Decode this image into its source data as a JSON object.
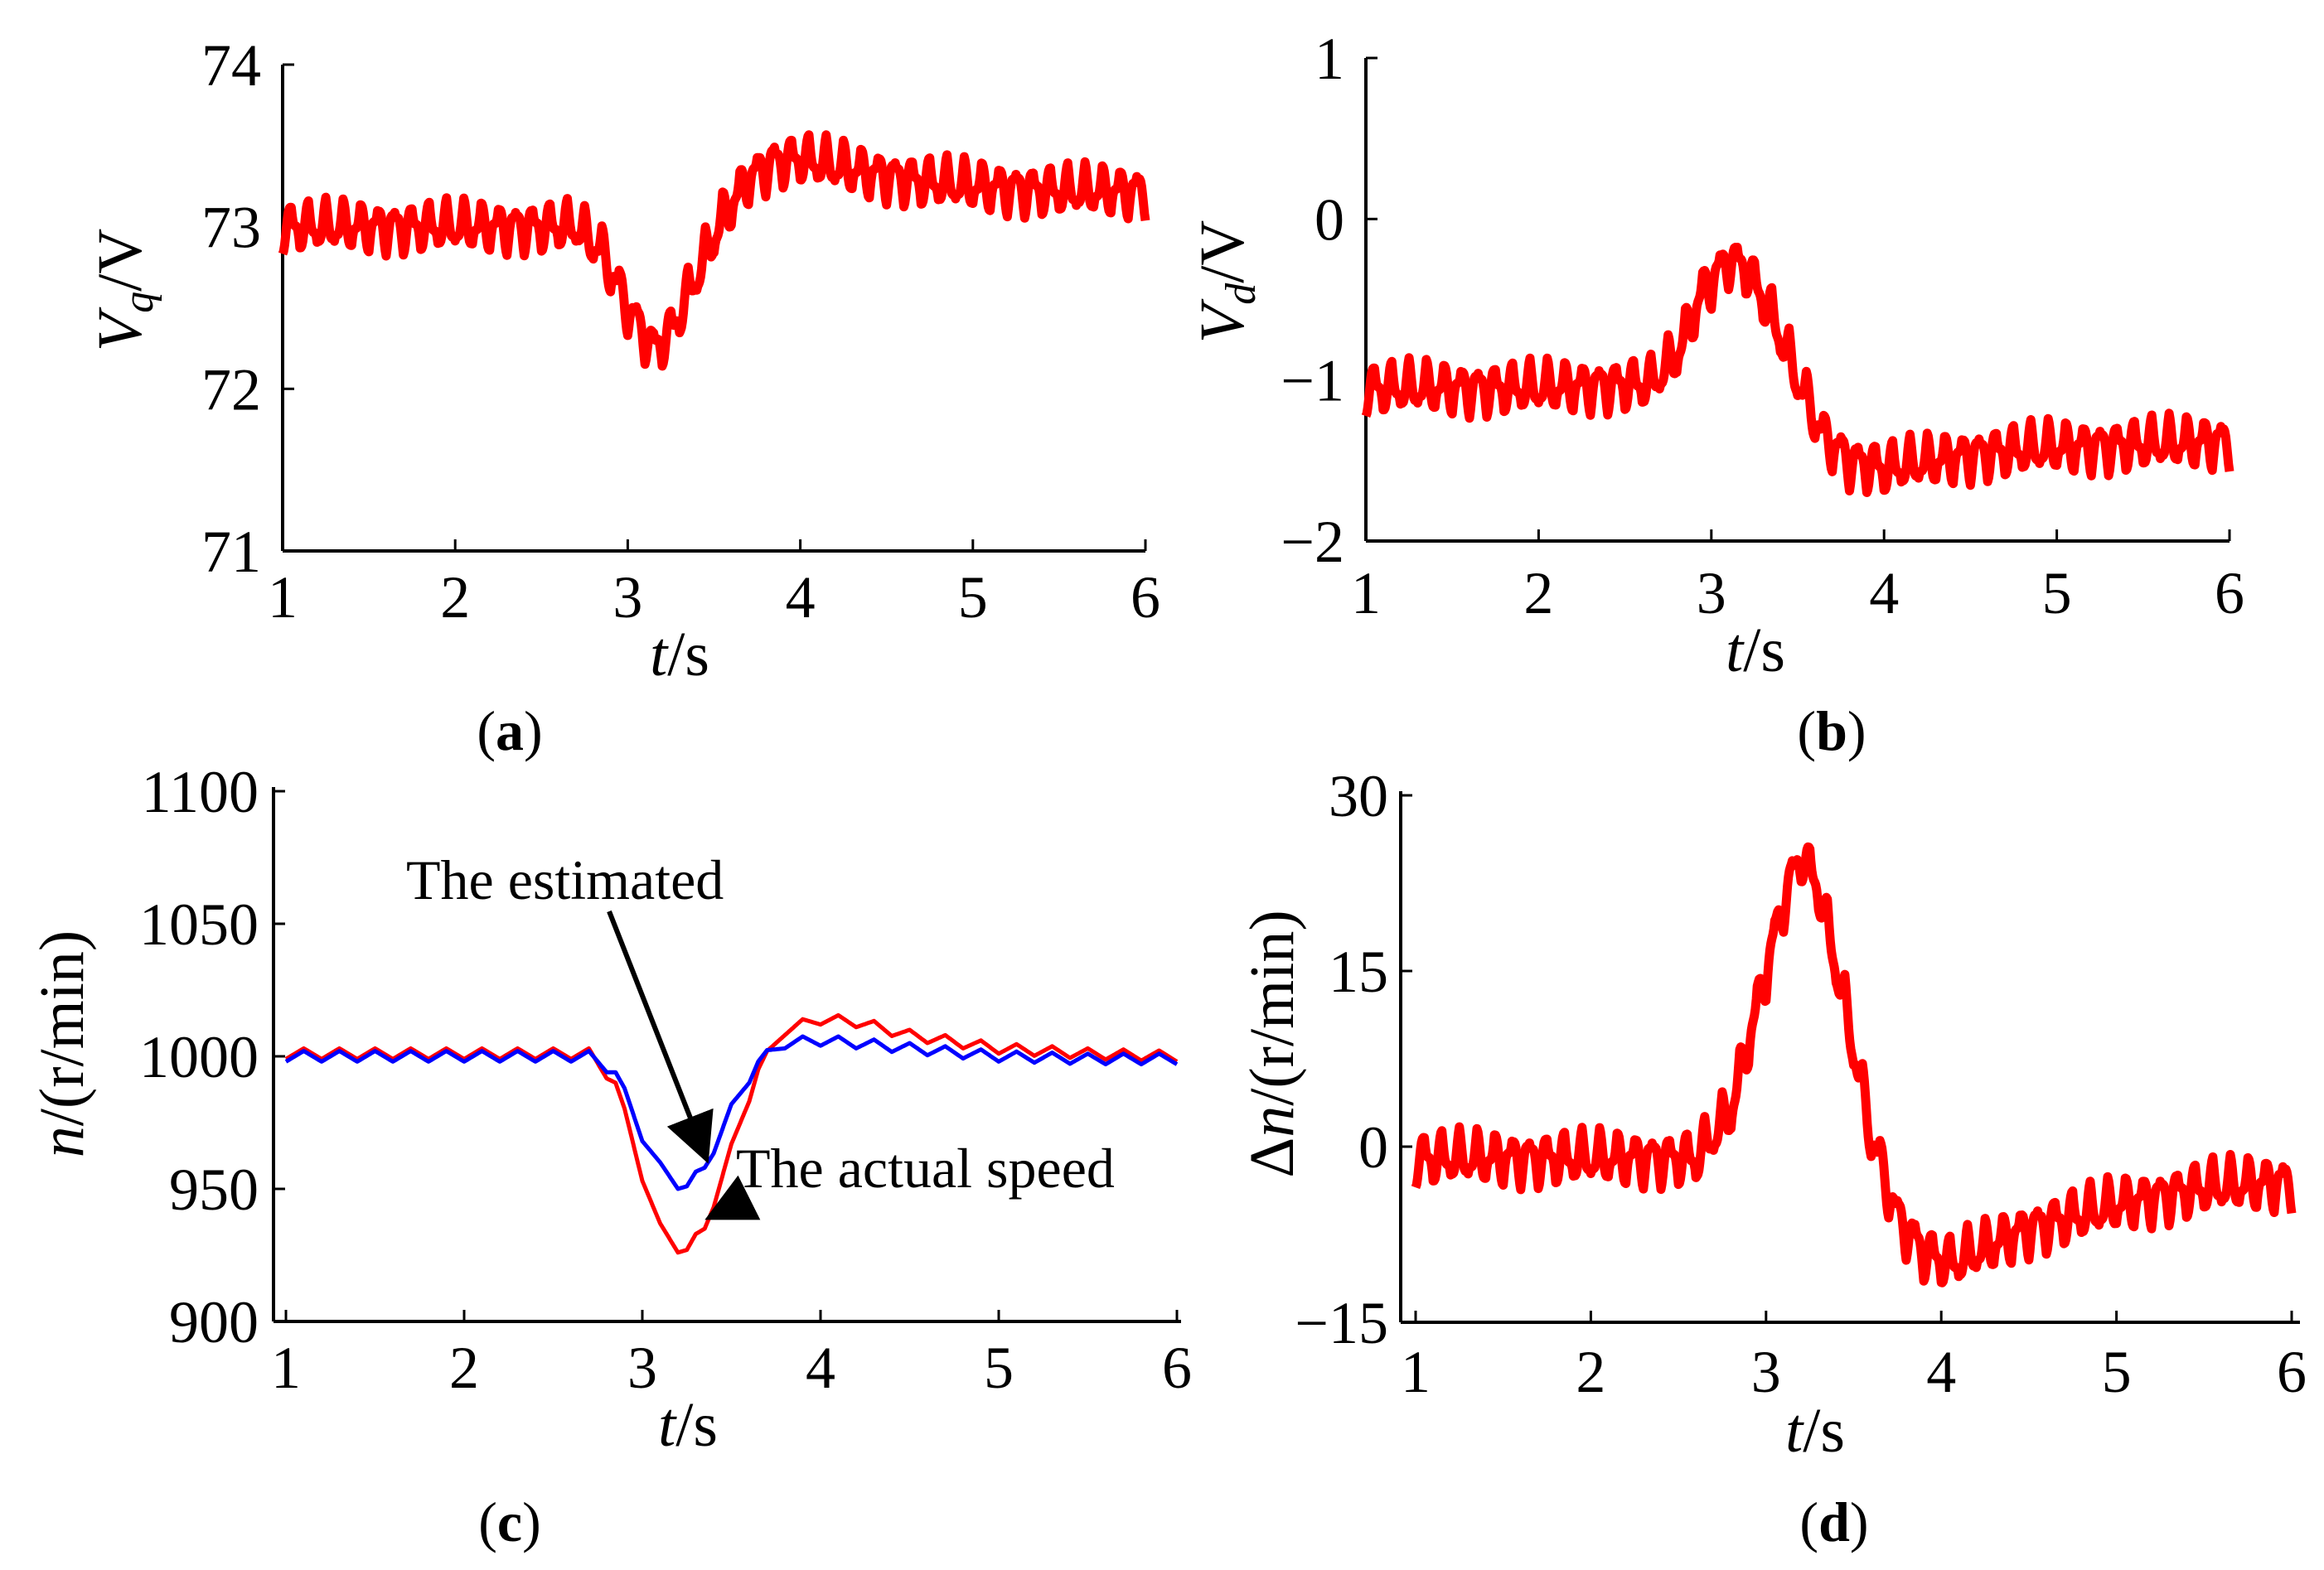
{
  "figure": {
    "line_color": "#ff0000",
    "secondary_color": "#0000ff"
  },
  "chart_data": [
    {
      "id": "a",
      "type": "line",
      "panel_label": {
        "open": "(",
        "letter": "a",
        "close": ")"
      },
      "xlabel": {
        "italic": "t",
        "rest": "/s"
      },
      "ylabel": {
        "italic": "V",
        "sub": "q",
        "rest": "/V"
      },
      "xlim": [
        1,
        6
      ],
      "ylim": [
        71,
        74
      ],
      "xticks": [
        "1",
        "2",
        "3",
        "4",
        "5",
        "6"
      ],
      "yticks": [
        "71",
        "72",
        "73",
        "74"
      ],
      "grid": false,
      "ripple": 0.27,
      "series": [
        {
          "color": "#ff0000",
          "x": [
            1.0,
            2.0,
            2.7,
            2.85,
            3.0,
            3.15,
            3.25,
            3.4,
            3.55,
            3.7,
            3.85,
            4.0,
            4.3,
            4.7,
            5.0,
            5.5,
            6.0
          ],
          "y": [
            73.0,
            73.0,
            73.0,
            72.85,
            72.5,
            72.25,
            72.35,
            72.7,
            73.05,
            73.3,
            73.4,
            73.42,
            73.35,
            73.28,
            73.25,
            73.22,
            73.22
          ]
        }
      ]
    },
    {
      "id": "b",
      "type": "line",
      "panel_label": {
        "open": "(",
        "letter": "b",
        "close": ")"
      },
      "xlabel": {
        "italic": "t",
        "rest": "/s"
      },
      "ylabel": {
        "italic": "V",
        "sub": "d",
        "rest": "/V"
      },
      "xlim": [
        1,
        6
      ],
      "ylim": [
        -2,
        1
      ],
      "xticks": [
        "1",
        "2",
        "3",
        "4",
        "5",
        "6"
      ],
      "yticks": [
        "−2",
        "−1",
        "0",
        "1"
      ],
      "grid": false,
      "ripple": 0.28,
      "series": [
        {
          "color": "#ff0000",
          "x": [
            1.0,
            2.0,
            2.65,
            2.8,
            2.95,
            3.1,
            3.2,
            3.35,
            3.5,
            3.65,
            3.8,
            4.0,
            4.3,
            4.6,
            5.0,
            5.5,
            6.0
          ],
          "y": [
            -1.05,
            -1.05,
            -1.02,
            -0.85,
            -0.45,
            -0.25,
            -0.3,
            -0.6,
            -1.0,
            -1.35,
            -1.5,
            -1.55,
            -1.5,
            -1.45,
            -1.42,
            -1.4,
            -1.38
          ]
        }
      ]
    },
    {
      "id": "c",
      "type": "line",
      "panel_label": {
        "open": "(",
        "letter": "c",
        "close": ")"
      },
      "xlabel": {
        "italic": "t",
        "rest": "/s"
      },
      "ylabel": {
        "italic": "n",
        "rest": "/(r/min)"
      },
      "xlim": [
        1,
        6
      ],
      "ylim": [
        900,
        1100
      ],
      "xticks": [
        "1",
        "2",
        "3",
        "4",
        "5",
        "6"
      ],
      "yticks": [
        "900",
        "950",
        "1000",
        "1050",
        "1100"
      ],
      "grid": false,
      "ripple": 5,
      "annotations": [
        {
          "text": "The estimated",
          "target": [
            3.35,
            963
          ]
        },
        {
          "text": "The actual speed",
          "target": [
            3.4,
            940
          ]
        }
      ],
      "series": [
        {
          "color": "#ff0000",
          "x": [
            1.0,
            2.0,
            2.7,
            2.85,
            3.0,
            3.1,
            3.2,
            3.25,
            3.35,
            3.5,
            3.65,
            3.8,
            4.0,
            4.2,
            4.5,
            5.0,
            5.5,
            6.0
          ],
          "y": [
            1001,
            1001,
            1001,
            990,
            955,
            935,
            928,
            927,
            935,
            965,
            995,
            1010,
            1014,
            1013,
            1008,
            1003,
            1001,
            1000
          ]
        },
        {
          "color": "#0000ff",
          "x": [
            1.0,
            2.0,
            2.7,
            2.85,
            3.0,
            3.1,
            3.2,
            3.25,
            3.35,
            3.5,
            3.65,
            3.8,
            4.0,
            4.2,
            4.5,
            5.0,
            5.5,
            6.0
          ],
          "y": [
            1000,
            1000,
            1000,
            994,
            970,
            958,
            952,
            951,
            958,
            980,
            998,
            1005,
            1006,
            1005,
            1003,
            1000,
            999,
            999
          ]
        }
      ]
    },
    {
      "id": "d",
      "type": "line",
      "panel_label": {
        "open": "(",
        "letter": "d",
        "close": ")"
      },
      "xlabel": {
        "italic": "t",
        "rest": "/s"
      },
      "ylabel": {
        "prefix": "Δ",
        "italic": "n",
        "rest": "/(r/min)"
      },
      "xlim": [
        1,
        6
      ],
      "ylim": [
        -15,
        30
      ],
      "xticks": [
        "1",
        "2",
        "3",
        "4",
        "5",
        "6"
      ],
      "yticks": [
        "−15",
        "0",
        "15",
        "30"
      ],
      "grid": false,
      "ripple": 4,
      "series": [
        {
          "color": "#ff0000",
          "x": [
            1.0,
            2.0,
            2.6,
            2.8,
            2.95,
            3.1,
            3.2,
            3.3,
            3.45,
            3.6,
            3.75,
            3.9,
            4.05,
            4.2,
            4.5,
            5.0,
            5.5,
            6.0
          ],
          "y": [
            -1,
            -1,
            -1,
            3,
            12,
            21,
            25,
            22,
            12,
            1,
            -6,
            -9,
            -10,
            -9,
            -7,
            -5,
            -3.5,
            -3
          ]
        }
      ]
    }
  ]
}
